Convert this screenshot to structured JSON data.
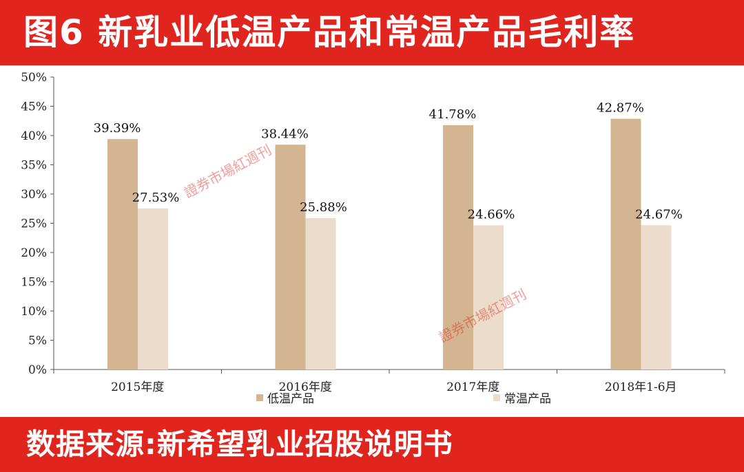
{
  "header": {
    "title": "图6 新乳业低温产品和常温产品毛利率"
  },
  "footer": {
    "source": "数据来源:新希望乳业招股说明书"
  },
  "watermark": {
    "text": "證券市場紅週刊"
  },
  "colors": {
    "banner": "#e0251f",
    "low_temp": "#d3b591",
    "room_temp": "#ecdccb",
    "axis": "#555555"
  },
  "chart_data": {
    "type": "bar",
    "title": "",
    "xlabel": "",
    "ylabel": "",
    "categories": [
      "2015年度",
      "2016年度",
      "2017年度",
      "2018年1-6月"
    ],
    "series": [
      {
        "name": "低温产品",
        "values": [
          39.39,
          38.44,
          41.78,
          42.87
        ],
        "labels": [
          "39.39%",
          "38.44%",
          "41.78%",
          "42.87%"
        ]
      },
      {
        "name": "常温产品",
        "values": [
          27.53,
          25.88,
          24.66,
          24.67
        ],
        "labels": [
          "27.53%",
          "25.88%",
          "24.66%",
          "24.67%"
        ]
      }
    ],
    "ylim": [
      0,
      50
    ],
    "yticks": [
      "0%",
      "5%",
      "10%",
      "15%",
      "20%",
      "25%",
      "30%",
      "35%",
      "40%",
      "45%",
      "50%"
    ],
    "grid": false,
    "legend_position": "bottom"
  }
}
